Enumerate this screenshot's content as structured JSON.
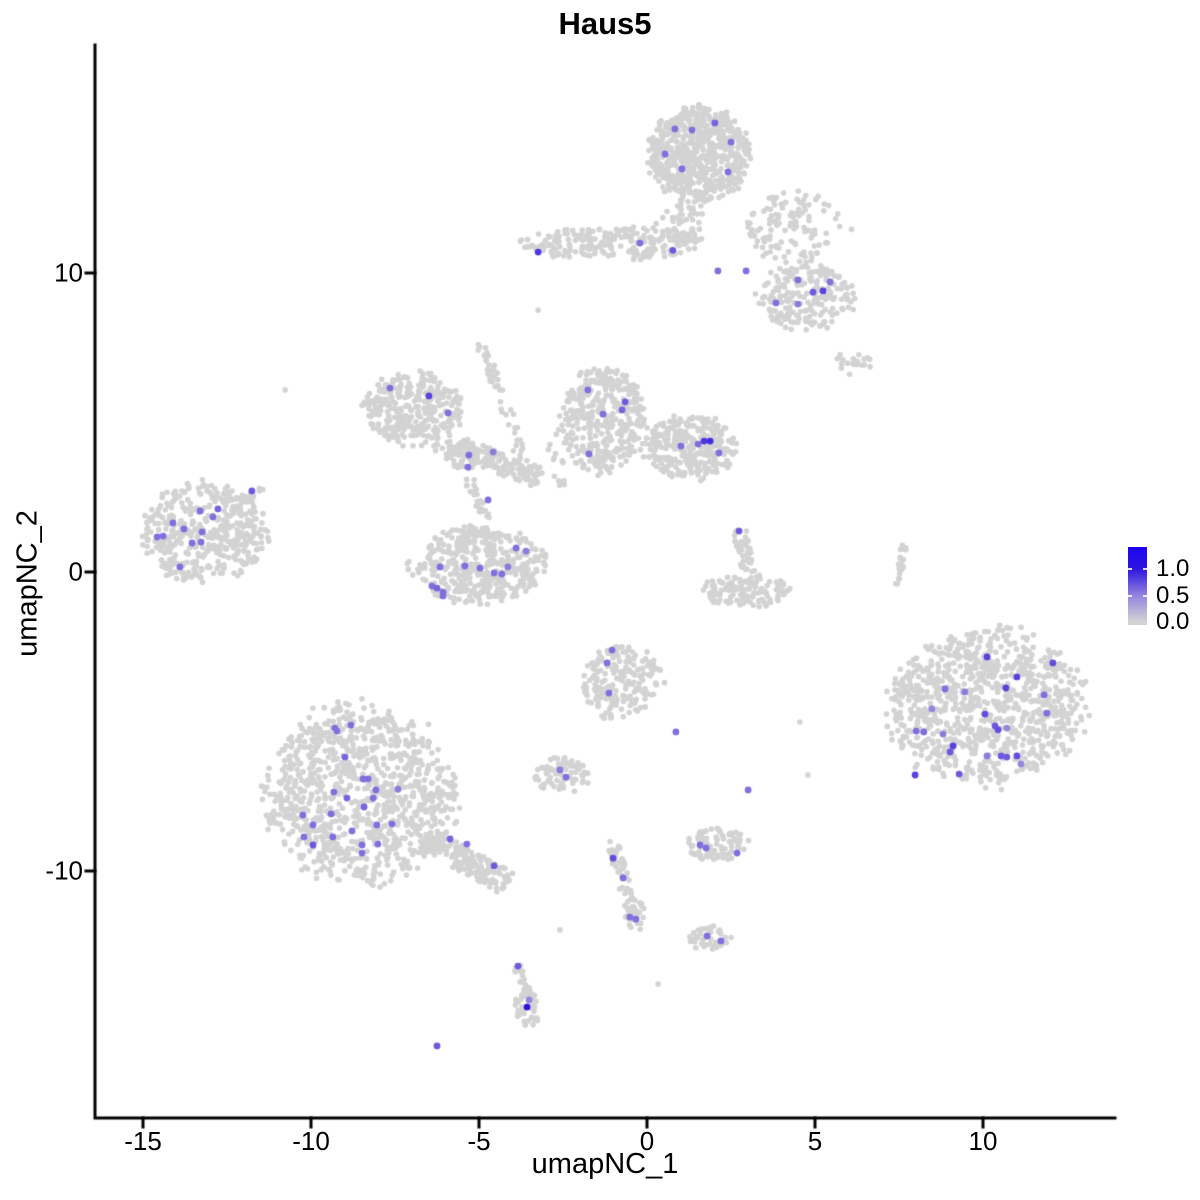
{
  "chart_data": {
    "type": "scatter",
    "title": "Haus5",
    "xlabel": "umapNC_1",
    "ylabel": "umapNC_2",
    "x_ticks": [
      -15,
      -10,
      -5,
      0,
      5,
      10
    ],
    "y_ticks": [
      10,
      0,
      -10
    ],
    "x_range": [
      -16.4,
      13.9
    ],
    "y_range": [
      -18.3,
      17.6
    ],
    "grid": false,
    "legend": {
      "position": "right",
      "labels": [
        "1.0",
        "0.5",
        "0.0"
      ],
      "color_top": "#1B04F1",
      "color_high": "#2D15DF",
      "color_mid": "#9686DE",
      "color_low": "#D3D3D3"
    },
    "point": {
      "radius_gray": 2.8,
      "radius_colored": 3.4,
      "color_gray": "#D3D3D3"
    },
    "clusters": [
      {
        "id": "top-main",
        "kind": "blob",
        "cx": 1.55,
        "cy": 13.98,
        "rx": 1.5,
        "ry": 1.55,
        "n": 650
      },
      {
        "id": "top-tail",
        "kind": "blob",
        "cx": 0.98,
        "cy": 11.71,
        "rx": 0.75,
        "ry": 0.8,
        "n": 55
      },
      {
        "id": "top-strip",
        "kind": "blob",
        "cx": -1.1,
        "cy": 11.0,
        "rx": 2.7,
        "ry": 0.55,
        "n": 220
      },
      {
        "id": "scatter-right-top",
        "kind": "blob",
        "cx": 4.4,
        "cy": 11.51,
        "rx": 1.7,
        "ry": 1.15,
        "n": 120
      },
      {
        "id": "right-upper",
        "kind": "blob",
        "cx": 4.73,
        "cy": 9.23,
        "rx": 1.4,
        "ry": 1.1,
        "n": 210
      },
      {
        "id": "bits-right",
        "kind": "blob",
        "cx": 6.13,
        "cy": 7.02,
        "rx": 0.55,
        "ry": 0.45,
        "n": 18
      },
      {
        "id": "diag-a",
        "kind": "line",
        "x1": -4.97,
        "y1": 7.66,
        "x2": -4.38,
        "y2": 6.02,
        "w": 0.15,
        "n": 30
      },
      {
        "id": "diag-b",
        "kind": "line",
        "x1": -4.29,
        "y1": 5.82,
        "x2": -3.57,
        "y2": 3.14,
        "w": 0.18,
        "n": 26
      },
      {
        "id": "mid-left",
        "kind": "blob",
        "cx": -6.96,
        "cy": 5.48,
        "rx": 1.45,
        "ry": 1.2,
        "n": 330
      },
      {
        "id": "mid-left-tail",
        "kind": "line",
        "x1": -6.31,
        "y1": 4.41,
        "x2": -3.18,
        "y2": 3.14,
        "w": 0.35,
        "n": 130
      },
      {
        "id": "center-bridge",
        "kind": "line",
        "x1": -2.89,
        "y1": 4.58,
        "x2": -2.44,
        "y2": 2.74,
        "w": 0.2,
        "n": 14
      },
      {
        "id": "center-left-lobe",
        "kind": "blob",
        "cx": -1.31,
        "cy": 5.08,
        "rx": 1.3,
        "ry": 1.7,
        "n": 380
      },
      {
        "id": "center-right-lobe",
        "kind": "blob",
        "cx": 1.28,
        "cy": 4.18,
        "rx": 1.35,
        "ry": 1.05,
        "n": 300
      },
      {
        "id": "left-big",
        "kind": "blob",
        "cx": -13.24,
        "cy": 1.3,
        "rx": 1.85,
        "ry": 1.65,
        "n": 430
      },
      {
        "id": "left-tail",
        "kind": "line",
        "x1": -12.35,
        "y1": 2.01,
        "x2": -11.46,
        "y2": 2.84,
        "w": 0.12,
        "n": 22
      },
      {
        "id": "bowl",
        "kind": "blob",
        "cx": -5.03,
        "cy": 0.23,
        "rx": 1.95,
        "ry": 1.3,
        "n": 430
      },
      {
        "id": "bowl-strand",
        "kind": "line",
        "x1": -5.33,
        "y1": 3.14,
        "x2": -4.73,
        "y2": 1.64,
        "w": 0.15,
        "n": 26
      },
      {
        "id": "above-bowl",
        "kind": "blob",
        "cx": -5.18,
        "cy": 3.91,
        "rx": 0.8,
        "ry": 0.5,
        "n": 60
      },
      {
        "id": "hook-vert",
        "kind": "line",
        "x1": 2.74,
        "y1": 1.44,
        "x2": 3.04,
        "y2": -0.07,
        "w": 0.2,
        "n": 45
      },
      {
        "id": "hook-bowl",
        "kind": "blob",
        "cx": 2.98,
        "cy": -0.64,
        "rx": 1.3,
        "ry": 0.55,
        "n": 130
      },
      {
        "id": "right-streak",
        "kind": "line",
        "x1": 7.68,
        "y1": 1.0,
        "x2": 7.44,
        "y2": -0.47,
        "w": 0.1,
        "n": 22
      },
      {
        "id": "right-big",
        "kind": "blob",
        "cx": 10.15,
        "cy": -4.48,
        "rx": 2.85,
        "ry": 2.55,
        "n": 950
      },
      {
        "id": "center-small",
        "kind": "blob",
        "cx": -0.74,
        "cy": -3.65,
        "rx": 1.15,
        "ry": 1.3,
        "n": 200
      },
      {
        "id": "small-mid",
        "kind": "blob",
        "cx": -2.53,
        "cy": -6.82,
        "rx": 0.8,
        "ry": 0.6,
        "n": 80
      },
      {
        "id": "bottom-left-big",
        "kind": "blob",
        "cx": -8.54,
        "cy": -7.39,
        "rx": 2.75,
        "ry": 2.95,
        "n": 1050
      },
      {
        "id": "bottom-left-tail",
        "kind": "line",
        "x1": -6.61,
        "y1": -8.9,
        "x2": -4.14,
        "y2": -10.43,
        "w": 0.4,
        "n": 160
      },
      {
        "id": "small-low-right",
        "kind": "blob",
        "cx": 2.08,
        "cy": -9.13,
        "rx": 0.9,
        "ry": 0.55,
        "n": 85
      },
      {
        "id": "v-streak",
        "kind": "line",
        "x1": -1.04,
        "y1": -8.96,
        "x2": -0.33,
        "y2": -11.91,
        "w": 0.18,
        "n": 60
      },
      {
        "id": "v-streak-foot",
        "kind": "blob",
        "cx": -0.33,
        "cy": -11.47,
        "rx": 0.3,
        "ry": 0.5,
        "n": 22
      },
      {
        "id": "small-lowest",
        "kind": "blob",
        "cx": 1.9,
        "cy": -12.27,
        "rx": 0.65,
        "ry": 0.4,
        "n": 40
      },
      {
        "id": "bottom-streak",
        "kind": "line",
        "x1": -3.9,
        "y1": -13.08,
        "x2": -3.57,
        "y2": -14.08,
        "w": 0.12,
        "n": 20
      },
      {
        "id": "bottom-blob",
        "kind": "blob",
        "cx": -3.54,
        "cy": -14.55,
        "rx": 0.4,
        "ry": 0.62,
        "n": 45
      }
    ],
    "singles_gray": [
      [
        -10.77,
        6.09
      ],
      [
        -3.24,
        8.76
      ],
      [
        6.4,
        6.92
      ],
      [
        0.33,
        -13.78
      ],
      [
        4.55,
        -5.02
      ],
      [
        4.79,
        -6.79
      ],
      [
        -2.59,
        -11.97
      ]
    ],
    "colored_points": [
      [
        0.83,
        14.82,
        0.6
      ],
      [
        1.34,
        14.78,
        0.6
      ],
      [
        2.02,
        15.02,
        0.65
      ],
      [
        2.5,
        14.38,
        0.6
      ],
      [
        0.54,
        13.98,
        0.6
      ],
      [
        1.04,
        13.48,
        0.6
      ],
      [
        2.41,
        13.38,
        0.6
      ],
      [
        -0.21,
        11.0,
        0.6
      ],
      [
        0.77,
        10.76,
        0.7
      ],
      [
        -3.24,
        10.7,
        0.85
      ],
      [
        2.11,
        10.07,
        0.6
      ],
      [
        2.95,
        10.07,
        0.6
      ],
      [
        4.49,
        9.77,
        0.6
      ],
      [
        4.94,
        9.36,
        0.7
      ],
      [
        5.24,
        9.4,
        0.8
      ],
      [
        5.45,
        9.7,
        0.6
      ],
      [
        3.84,
        9.0,
        0.6
      ],
      [
        4.49,
        8.96,
        0.55
      ],
      [
        -11.76,
        2.71,
        0.7
      ],
      [
        -14.11,
        1.64,
        0.6
      ],
      [
        -13.3,
        2.04,
        0.6
      ],
      [
        -12.77,
        2.11,
        0.65
      ],
      [
        -12.92,
        1.84,
        0.6
      ],
      [
        -13.78,
        1.44,
        0.6
      ],
      [
        -13.24,
        1.34,
        0.6
      ],
      [
        -14.58,
        1.17,
        0.6
      ],
      [
        -14.4,
        1.2,
        0.6
      ],
      [
        -13.54,
        0.97,
        0.6
      ],
      [
        -13.27,
        1.0,
        0.6
      ],
      [
        -13.9,
        0.17,
        0.6
      ],
      [
        -7.65,
        6.15,
        0.6
      ],
      [
        -6.49,
        5.89,
        0.8
      ],
      [
        -5.92,
        5.32,
        0.6
      ],
      [
        -4.73,
        2.41,
        0.6
      ],
      [
        -5.3,
        3.91,
        0.6
      ],
      [
        -4.58,
        4.01,
        0.55
      ],
      [
        -5.33,
        3.51,
        0.6
      ],
      [
        -1.76,
        6.09,
        0.6
      ],
      [
        -0.65,
        5.69,
        0.7
      ],
      [
        -0.74,
        5.42,
        0.65
      ],
      [
        -1.31,
        5.28,
        0.6
      ],
      [
        -1.73,
        3.95,
        0.6
      ],
      [
        1.01,
        4.21,
        0.6
      ],
      [
        1.52,
        4.28,
        0.6
      ],
      [
        1.7,
        4.38,
        0.85
      ],
      [
        1.88,
        4.38,
        0.9
      ],
      [
        2.14,
        3.98,
        0.6
      ],
      [
        -6.16,
        0.17,
        0.6
      ],
      [
        -5.42,
        0.2,
        0.6
      ],
      [
        -4.97,
        0.13,
        0.6
      ],
      [
        -4.55,
        -0.03,
        0.6
      ],
      [
        -4.32,
        -0.07,
        0.6
      ],
      [
        -3.9,
        0.8,
        0.6
      ],
      [
        -3.6,
        0.7,
        0.55
      ],
      [
        -6.4,
        -0.47,
        0.6
      ],
      [
        -6.25,
        -0.54,
        0.65
      ],
      [
        -6.07,
        -0.67,
        0.6
      ],
      [
        -6.07,
        -0.8,
        0.6
      ],
      [
        -4.14,
        0.17,
        0.55
      ],
      [
        2.74,
        1.37,
        0.7
      ],
      [
        3.01,
        -7.29,
        0.6
      ],
      [
        10.12,
        -2.84,
        0.8
      ],
      [
        12.08,
        -3.04,
        0.75
      ],
      [
        11.01,
        -3.51,
        0.8
      ],
      [
        10.68,
        -3.88,
        0.8
      ],
      [
        8.87,
        -3.91,
        0.6
      ],
      [
        9.46,
        -4.01,
        0.55
      ],
      [
        11.82,
        -4.11,
        0.6
      ],
      [
        8.48,
        -4.58,
        0.5
      ],
      [
        10.06,
        -4.75,
        0.75
      ],
      [
        8.01,
        -5.32,
        0.6
      ],
      [
        8.24,
        -5.35,
        0.6
      ],
      [
        8.81,
        -5.42,
        0.55
      ],
      [
        10.36,
        -5.15,
        0.7
      ],
      [
        10.45,
        -5.28,
        0.75
      ],
      [
        10.71,
        -5.22,
        0.5
      ],
      [
        11.9,
        -4.72,
        0.6
      ],
      [
        9.11,
        -5.82,
        0.8
      ],
      [
        9.02,
        -6.02,
        0.7
      ],
      [
        10.12,
        -6.15,
        0.55
      ],
      [
        10.54,
        -6.15,
        0.7
      ],
      [
        10.71,
        -6.19,
        0.7
      ],
      [
        11.01,
        -6.15,
        0.75
      ],
      [
        11.13,
        -6.42,
        0.5
      ],
      [
        7.98,
        -6.79,
        0.8
      ],
      [
        9.29,
        -6.76,
        0.7
      ],
      [
        -1.04,
        -2.61,
        0.6
      ],
      [
        -1.19,
        -3.04,
        0.6
      ],
      [
        -1.13,
        -4.05,
        0.6
      ],
      [
        0.86,
        -5.35,
        0.6
      ],
      [
        -2.59,
        -6.62,
        0.55
      ],
      [
        -2.41,
        -6.86,
        0.6
      ],
      [
        -9.29,
        -5.22,
        0.6
      ],
      [
        -9.23,
        -5.32,
        0.6
      ],
      [
        -8.81,
        -5.12,
        0.6
      ],
      [
        -8.99,
        -6.19,
        0.65
      ],
      [
        -8.45,
        -6.92,
        0.6
      ],
      [
        -8.3,
        -6.92,
        0.6
      ],
      [
        -9.32,
        -7.36,
        0.6
      ],
      [
        -8.93,
        -7.56,
        0.65
      ],
      [
        -8.07,
        -7.29,
        0.6
      ],
      [
        -8.15,
        -7.56,
        0.6
      ],
      [
        -7.41,
        -7.26,
        0.55
      ],
      [
        -10.24,
        -8.13,
        0.6
      ],
      [
        -9.4,
        -8.09,
        0.6
      ],
      [
        -9.94,
        -8.46,
        0.6
      ],
      [
        -8.42,
        -7.86,
        0.65
      ],
      [
        -8.04,
        -8.46,
        0.6
      ],
      [
        -7.59,
        -8.43,
        0.6
      ],
      [
        -8.78,
        -8.66,
        0.6
      ],
      [
        -10.21,
        -8.86,
        0.6
      ],
      [
        -9.94,
        -9.13,
        0.7
      ],
      [
        -9.35,
        -8.86,
        0.6
      ],
      [
        -8.48,
        -9.13,
        0.6
      ],
      [
        -8.01,
        -9.1,
        0.6
      ],
      [
        -8.48,
        -9.4,
        0.6
      ],
      [
        -5.86,
        -8.93,
        0.65
      ],
      [
        -5.36,
        -9.1,
        0.6
      ],
      [
        -4.55,
        -9.83,
        0.7
      ],
      [
        1.58,
        -9.13,
        0.6
      ],
      [
        1.76,
        -9.23,
        0.6
      ],
      [
        2.68,
        -9.4,
        0.6
      ],
      [
        -1.01,
        -9.57,
        0.75
      ],
      [
        -0.71,
        -10.23,
        0.6
      ],
      [
        -0.51,
        -11.54,
        0.6
      ],
      [
        -0.33,
        -11.61,
        0.6
      ],
      [
        1.79,
        -12.17,
        0.6
      ],
      [
        2.2,
        -12.34,
        0.6
      ],
      [
        -3.84,
        -13.18,
        0.7
      ],
      [
        -3.51,
        -14.31,
        0.5
      ],
      [
        -3.57,
        -14.55,
        1.0
      ],
      [
        -6.25,
        -15.85,
        0.7
      ]
    ]
  }
}
